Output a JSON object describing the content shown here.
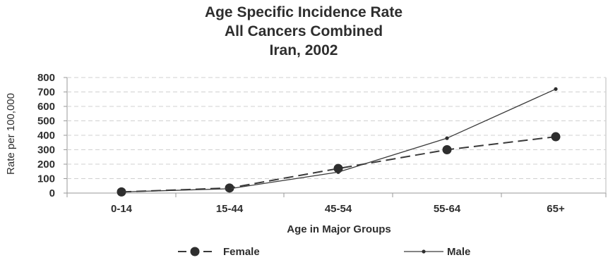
{
  "chart_data": {
    "type": "line",
    "title": [
      "Age Specific Incidence Rate",
      "All Cancers Combined",
      "Iran, 2002"
    ],
    "xlabel": "Age in Major Groups",
    "ylabel": "Rate per 100,000",
    "categories": [
      "0-14",
      "15-44",
      "45-54",
      "55-64",
      "65+"
    ],
    "ylim": [
      0,
      800
    ],
    "yticks": [
      0,
      100,
      200,
      300,
      400,
      500,
      600,
      700,
      800
    ],
    "grid": true,
    "legend_position": "bottom",
    "series": [
      {
        "name": "Female",
        "values": [
          8,
          35,
          170,
          300,
          390
        ],
        "style": "dashed",
        "marker": "circle",
        "color": "#3a3a3a"
      },
      {
        "name": "Male",
        "values": [
          8,
          30,
          145,
          380,
          720
        ],
        "style": "solid",
        "marker": "dot",
        "color": "#3a3a3a"
      }
    ]
  }
}
